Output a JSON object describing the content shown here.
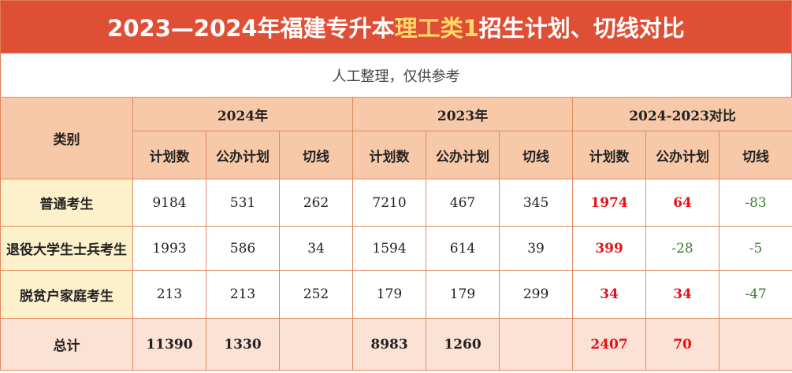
{
  "title": {
    "prefix": "2023—2024年福建专升本",
    "highlight": "理工类1",
    "suffix": "招生计划、切线对比"
  },
  "subtitle": "人工整理，仅供参考",
  "header": {
    "category": "类别",
    "groups": [
      "2024年",
      "2023年",
      "2024-2023对比"
    ],
    "cols": [
      "计划数",
      "公办计划",
      "切线"
    ]
  },
  "rows": [
    {
      "category": "普通考生",
      "y2024": [
        "9184",
        "531",
        "262"
      ],
      "y2023": [
        "7210",
        "467",
        "345"
      ],
      "diff": [
        "1974",
        "64",
        "-83"
      ]
    },
    {
      "category": "退役大学生士兵考生",
      "y2024": [
        "1993",
        "586",
        "34"
      ],
      "y2023": [
        "1594",
        "614",
        "39"
      ],
      "diff": [
        "399",
        "-28",
        "-5"
      ]
    },
    {
      "category": "脱贫户家庭考生",
      "y2024": [
        "213",
        "213",
        "252"
      ],
      "y2023": [
        "179",
        "179",
        "299"
      ],
      "diff": [
        "34",
        "34",
        "-47"
      ]
    }
  ],
  "total": {
    "label": "总计",
    "y2024": [
      "11390",
      "1330",
      ""
    ],
    "y2023": [
      "8983",
      "1260",
      ""
    ],
    "diff": [
      "2407",
      "70",
      ""
    ]
  },
  "colors": {
    "title_bg": "#df4f35",
    "highlight": "#ffd966",
    "header_bg": "#f8c9a9",
    "category_bg": "#fdf1cc",
    "total_bg": "#fce2d4",
    "positive": "#e1131b",
    "negative": "#3a7d2f",
    "border": "#e08a60"
  }
}
